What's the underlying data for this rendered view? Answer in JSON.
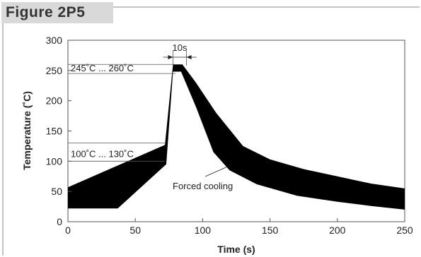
{
  "figure_label": "Figure 2P5",
  "colors": {
    "band": "#000000",
    "tab": "#d9d9d9",
    "frame": "#888888",
    "grid": "#555555"
  },
  "chart_data": {
    "type": "area",
    "title": "",
    "xlabel": "Time (s)",
    "ylabel": "Temperature (˚C)",
    "xlim": [
      0,
      250
    ],
    "ylim": [
      0,
      300
    ],
    "xticks": [
      0,
      50,
      100,
      150,
      200,
      250
    ],
    "yticks": [
      0,
      50,
      100,
      150,
      200,
      250,
      300
    ],
    "grid": false,
    "band": {
      "upper": {
        "x": [
          0,
          72,
          78,
          85,
          95,
          110,
          130,
          150,
          175,
          200,
          225,
          250
        ],
        "y": [
          57,
          127,
          260,
          260,
          230,
          180,
          125,
          103,
          87,
          75,
          63,
          55
        ]
      },
      "lower": {
        "x": [
          0,
          37,
          73,
          78,
          84,
          95,
          108,
          120,
          140,
          170,
          200,
          225,
          250
        ],
        "y": [
          22,
          22,
          95,
          248,
          248,
          190,
          115,
          85,
          62,
          43,
          33,
          26,
          20
        ]
      }
    },
    "annotations": [
      {
        "text": "245˚C ... 260˚C",
        "y_range": [
          245,
          260
        ]
      },
      {
        "text": "100˚C ... 130˚C",
        "y_range": [
          100,
          130
        ]
      },
      {
        "text": "10s",
        "x_range": [
          78,
          88
        ]
      },
      {
        "text": "Forced cooling",
        "point": [
          118,
          100
        ]
      }
    ]
  }
}
